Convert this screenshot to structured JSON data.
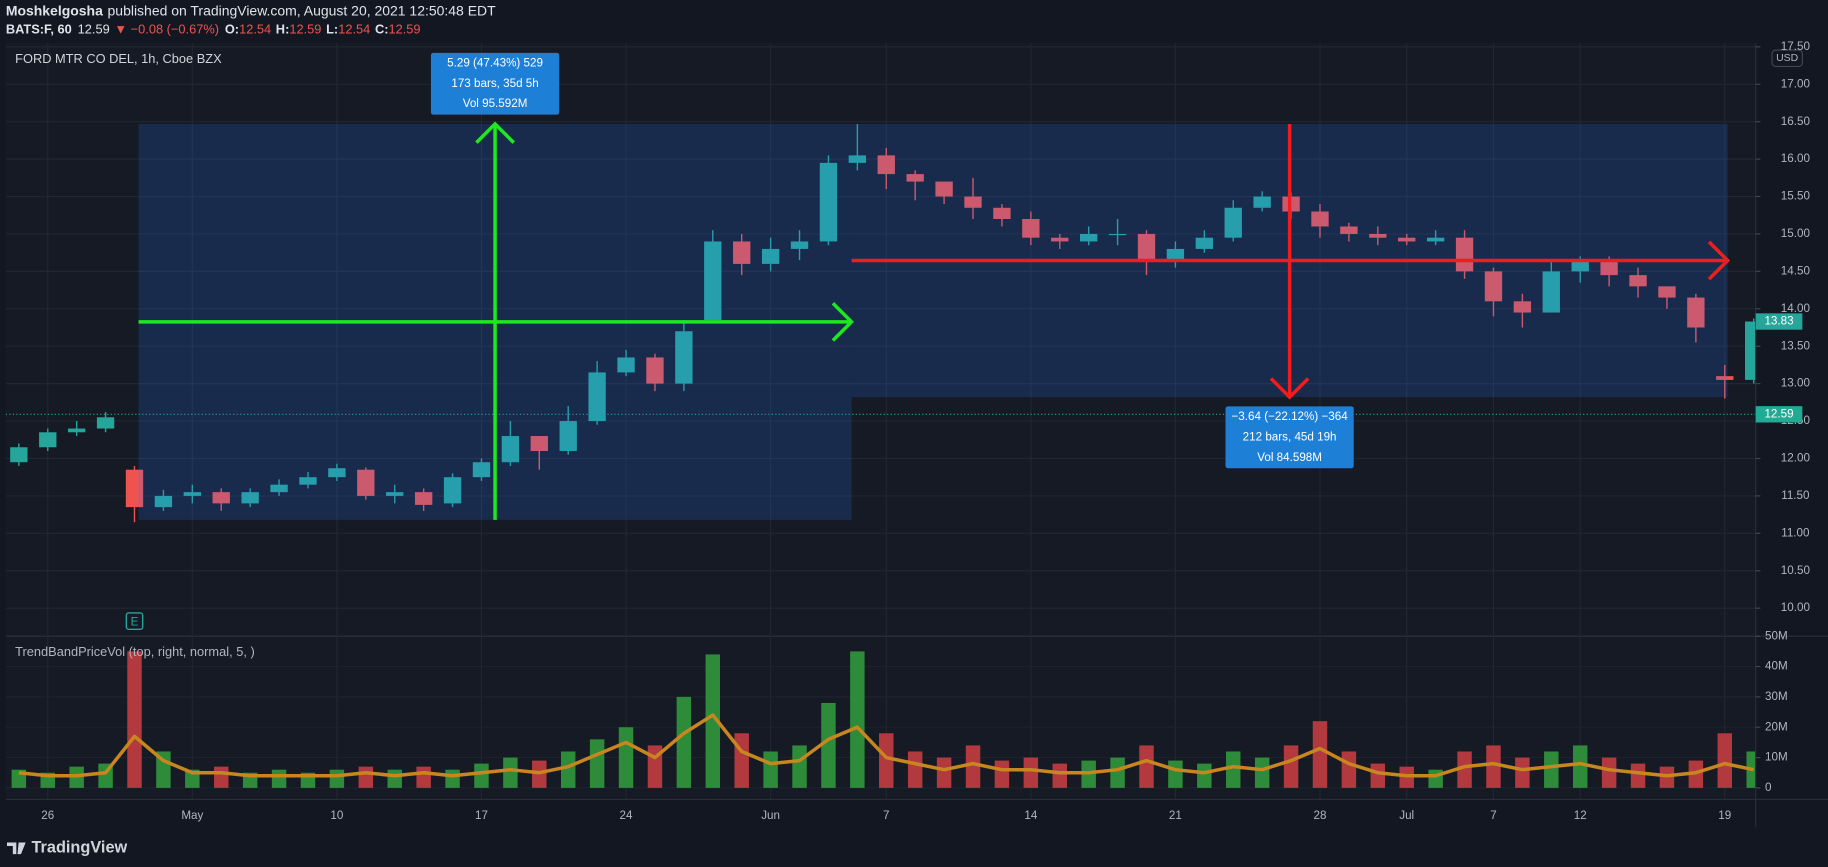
{
  "header": {
    "author": "Moshkelgosha",
    "published": "published on TradingView.com, August 20, 2021 12:50:48 EDT",
    "symbol": "BATS:F, 60",
    "price": "12.59",
    "change": "▼ −0.08 (−0.67%)",
    "ohlc": [
      {
        "label": "O:",
        "value": "12.54"
      },
      {
        "label": "H:",
        "value": "12.59"
      },
      {
        "label": "L:",
        "value": "12.54"
      },
      {
        "label": "C:",
        "value": "12.59"
      }
    ]
  },
  "chart_data": [
    {
      "type": "candlestick",
      "title": "FORD MTR CO DEL, 1h, Cboe BZX",
      "currency": "USD",
      "x": [
        -1,
        0,
        1,
        2,
        3,
        4,
        5,
        6,
        7,
        8,
        9,
        10,
        11,
        12,
        13,
        14,
        15,
        16,
        17,
        18,
        19,
        20,
        21,
        22,
        23,
        24,
        25,
        26,
        27,
        28,
        29,
        30,
        31,
        32,
        33,
        34,
        35,
        36,
        37,
        38,
        39,
        40,
        41,
        42,
        43,
        44,
        45,
        46,
        47,
        48,
        49,
        50,
        51,
        52,
        53,
        54,
        55,
        56,
        57,
        58,
        59
      ],
      "open": [
        11.95,
        12.15,
        12.35,
        12.4,
        11.85,
        11.35,
        11.5,
        11.55,
        11.4,
        11.55,
        11.65,
        11.75,
        11.85,
        11.5,
        11.55,
        11.4,
        11.75,
        11.95,
        12.3,
        12.1,
        12.5,
        13.15,
        13.35,
        13.0,
        13.85,
        14.9,
        14.6,
        14.8,
        14.9,
        15.95,
        16.05,
        15.8,
        15.7,
        15.5,
        15.35,
        15.2,
        14.95,
        14.9,
        15.0,
        15.0,
        14.65,
        14.8,
        14.95,
        15.35,
        15.5,
        15.3,
        15.1,
        15.0,
        14.95,
        14.9,
        14.95,
        14.5,
        14.1,
        13.95,
        14.5,
        14.65,
        14.45,
        14.3,
        14.15,
        13.1,
        13.05
      ],
      "high": [
        12.2,
        12.4,
        12.5,
        12.62,
        11.9,
        11.58,
        11.65,
        11.6,
        11.6,
        11.72,
        11.82,
        11.93,
        11.88,
        11.65,
        11.6,
        11.8,
        12.0,
        12.5,
        12.3,
        12.7,
        13.3,
        13.45,
        13.4,
        13.85,
        15.05,
        15.0,
        14.95,
        15.05,
        16.05,
        16.47,
        16.15,
        15.85,
        15.7,
        15.75,
        15.4,
        15.3,
        15.0,
        15.1,
        15.2,
        15.05,
        14.9,
        15.05,
        15.45,
        15.57,
        15.55,
        15.4,
        15.15,
        15.1,
        15.0,
        15.05,
        15.05,
        14.55,
        14.2,
        14.65,
        14.7,
        14.7,
        14.55,
        14.3,
        14.2,
        13.25,
        13.87
      ],
      "low": [
        11.9,
        12.1,
        12.3,
        12.35,
        11.15,
        11.3,
        11.4,
        11.3,
        11.35,
        11.5,
        11.6,
        11.7,
        11.45,
        11.4,
        11.3,
        11.35,
        11.7,
        11.9,
        11.85,
        12.05,
        12.45,
        13.1,
        12.9,
        12.9,
        13.85,
        14.45,
        14.5,
        14.65,
        14.85,
        15.85,
        15.6,
        15.45,
        15.4,
        15.2,
        15.1,
        14.85,
        14.8,
        14.85,
        14.85,
        14.45,
        14.55,
        14.75,
        14.9,
        15.3,
        15.2,
        14.95,
        14.9,
        14.85,
        14.85,
        14.85,
        14.4,
        13.9,
        13.75,
        13.95,
        14.35,
        14.3,
        14.15,
        14.0,
        13.55,
        12.8,
        13.0
      ],
      "close": [
        12.15,
        12.35,
        12.4,
        12.55,
        11.35,
        11.5,
        11.55,
        11.4,
        11.55,
        11.65,
        11.75,
        11.87,
        11.5,
        11.55,
        11.38,
        11.75,
        11.95,
        12.3,
        12.1,
        12.5,
        13.15,
        13.35,
        13.0,
        13.7,
        14.9,
        14.6,
        14.8,
        14.9,
        15.95,
        16.05,
        15.8,
        15.7,
        15.5,
        15.35,
        15.2,
        14.95,
        14.9,
        15.0,
        15.0,
        14.65,
        14.8,
        14.95,
        15.35,
        15.5,
        15.3,
        15.1,
        15.0,
        14.95,
        14.9,
        14.95,
        14.5,
        14.1,
        13.95,
        14.5,
        14.65,
        14.45,
        14.3,
        14.15,
        13.75,
        13.05,
        13.83
      ],
      "up_color": "#26a69a",
      "down_color": "#ef5350",
      "xlim": [
        -1.45,
        59.07
      ],
      "xticks": [
        {
          "value": 0,
          "label": "26"
        },
        {
          "value": 5,
          "label": "May"
        },
        {
          "value": 10,
          "label": "10"
        },
        {
          "value": 15,
          "label": "17"
        },
        {
          "value": 20,
          "label": "24"
        },
        {
          "value": 25,
          "label": "Jun"
        },
        {
          "value": 29,
          "label": "7"
        },
        {
          "value": 34,
          "label": "14"
        },
        {
          "value": 39,
          "label": "21"
        },
        {
          "value": 44,
          "label": "28"
        },
        {
          "value": 47,
          "label": "Jul"
        },
        {
          "value": 50,
          "label": "7"
        },
        {
          "value": 53,
          "label": "12"
        },
        {
          "value": 58,
          "label": "19"
        }
      ],
      "ylim": [
        9.64,
        17.55
      ],
      "yticks": [
        {
          "value": 10,
          "label": "10.00"
        },
        {
          "value": 10.5,
          "label": "10.50"
        },
        {
          "value": 11,
          "label": "11.00"
        },
        {
          "value": 11.5,
          "label": "11.50"
        },
        {
          "value": 12,
          "label": "12.00"
        },
        {
          "value": 12.5,
          "label": "12.50"
        },
        {
          "value": 13,
          "label": "13.00"
        },
        {
          "value": 13.5,
          "label": "13.50"
        },
        {
          "value": 14,
          "label": "14.00"
        },
        {
          "value": 14.5,
          "label": "14.50"
        },
        {
          "value": 15,
          "label": "15.00"
        },
        {
          "value": 15.5,
          "label": "15.50"
        },
        {
          "value": 16,
          "label": "16.00"
        },
        {
          "value": 16.5,
          "label": "16.50"
        },
        {
          "value": 17,
          "label": "17.00"
        },
        {
          "value": 17.5,
          "label": "17.50"
        }
      ],
      "grid": true,
      "last_price": 13.83,
      "last_price_color": "#26a69a",
      "price_line": 12.59,
      "price_line_color": "#22ab94",
      "earnings": {
        "x": 3,
        "label": "E"
      },
      "measures": [
        {
          "color": "#1ee81e",
          "from": [
            3.14,
            11.18
          ],
          "to": [
            27.8,
            16.47
          ],
          "lines": [
            "5.29 (47.43%) 529",
            "173 bars, 35d 5h",
            "Vol 95.592M"
          ]
        },
        {
          "color": "#f21c1c",
          "from": [
            27.8,
            16.47
          ],
          "to": [
            58.1,
            12.82
          ],
          "lines": [
            "−3.64 (−22.12%) −364",
            "212 bars, 45d 19h",
            "Vol 84.598M"
          ]
        }
      ]
    },
    {
      "type": "bar",
      "title": "TrendBandPriceVol (top, right, normal, 5, )",
      "values": [
        6,
        5,
        7,
        8,
        45,
        12,
        6,
        7,
        5,
        6,
        5,
        6,
        7,
        6,
        7,
        6,
        8,
        10,
        9,
        12,
        16,
        20,
        14,
        30,
        44,
        18,
        12,
        14,
        28,
        45,
        18,
        12,
        10,
        14,
        9,
        10,
        8,
        9,
        10,
        14,
        9,
        8,
        12,
        10,
        14,
        22,
        12,
        8,
        7,
        6,
        12,
        14,
        10,
        12,
        14,
        10,
        8,
        7,
        9,
        18,
        12
      ],
      "trend": [
        5,
        4,
        4,
        5,
        17,
        9,
        5,
        5,
        4,
        4,
        4,
        4,
        5,
        4,
        5,
        4,
        5,
        6,
        5,
        7,
        11,
        15,
        10,
        18,
        24,
        12,
        8,
        9,
        16,
        20,
        10,
        8,
        6,
        8,
        6,
        6,
        5,
        5,
        6,
        9,
        6,
        5,
        7,
        6,
        9,
        13,
        8,
        5,
        4,
        4,
        7,
        8,
        6,
        7,
        8,
        6,
        5,
        4,
        5,
        8,
        6
      ],
      "up_color": "#2e8b3a",
      "down_color": "#b23a3f",
      "trend_color": "#c8861e",
      "ylim": [
        -3.8,
        49.6
      ],
      "yticks": [
        0,
        {
          "value": 10,
          "label": "10M"
        },
        {
          "value": 20,
          "label": "20M"
        },
        {
          "value": 30,
          "label": "30M"
        },
        {
          "value": 40,
          "label": "40M"
        },
        {
          "value": 50,
          "label": "50M"
        }
      ]
    }
  ],
  "logo": "TradingView"
}
